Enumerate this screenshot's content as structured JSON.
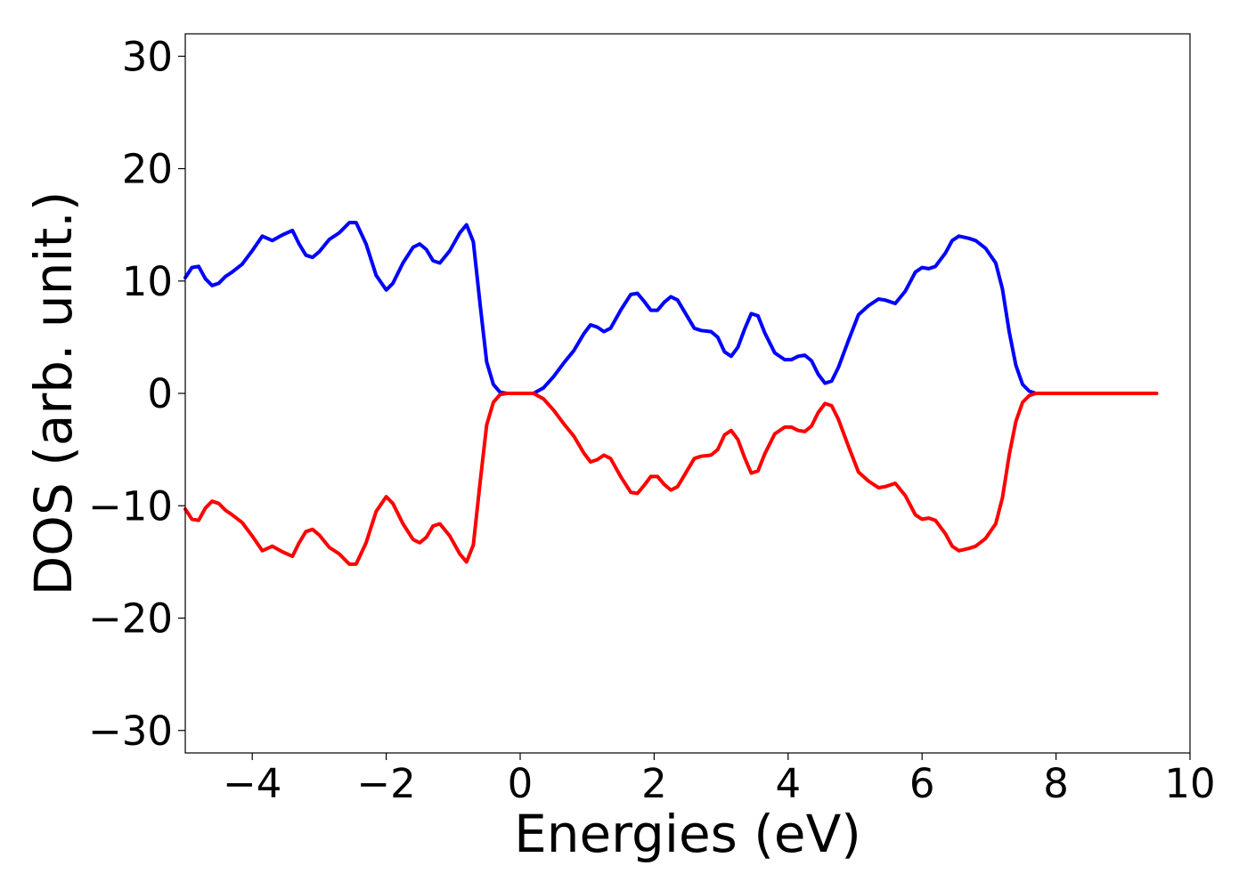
{
  "chart_data": {
    "type": "line",
    "title": "",
    "xlabel": "Energies (eV)",
    "ylabel": "DOS (arb. unit.)",
    "xlim": [
      -5,
      10
    ],
    "ylim": [
      -32,
      32
    ],
    "xticks": [
      -4,
      -2,
      0,
      2,
      4,
      6,
      8,
      10
    ],
    "yticks": [
      -30,
      -20,
      -10,
      0,
      10,
      20,
      30
    ],
    "xtick_labels": [
      "−4",
      "−2",
      "0",
      "2",
      "4",
      "6",
      "8",
      "10"
    ],
    "ytick_labels": [
      "−30",
      "−20",
      "−10",
      "0",
      "10",
      "20",
      "30"
    ],
    "grid": false,
    "series": [
      {
        "color": "#0000ff",
        "points": [
          [
            -5.0,
            10.3
          ],
          [
            -4.9,
            11.2
          ],
          [
            -4.8,
            11.3
          ],
          [
            -4.7,
            10.2
          ],
          [
            -4.6,
            9.6
          ],
          [
            -4.5,
            9.8
          ],
          [
            -4.4,
            10.4
          ],
          [
            -4.3,
            10.8
          ],
          [
            -4.15,
            11.5
          ],
          [
            -4.0,
            12.7
          ],
          [
            -3.85,
            14.0
          ],
          [
            -3.7,
            13.6
          ],
          [
            -3.55,
            14.1
          ],
          [
            -3.4,
            14.5
          ],
          [
            -3.3,
            13.3
          ],
          [
            -3.2,
            12.3
          ],
          [
            -3.1,
            12.1
          ],
          [
            -3.0,
            12.6
          ],
          [
            -2.85,
            13.7
          ],
          [
            -2.7,
            14.3
          ],
          [
            -2.55,
            15.2
          ],
          [
            -2.45,
            15.2
          ],
          [
            -2.3,
            13.3
          ],
          [
            -2.15,
            10.5
          ],
          [
            -2.0,
            9.2
          ],
          [
            -1.9,
            9.8
          ],
          [
            -1.75,
            11.6
          ],
          [
            -1.6,
            13.0
          ],
          [
            -1.5,
            13.3
          ],
          [
            -1.4,
            12.8
          ],
          [
            -1.3,
            11.8
          ],
          [
            -1.2,
            11.6
          ],
          [
            -1.05,
            12.7
          ],
          [
            -0.9,
            14.3
          ],
          [
            -0.8,
            15.0
          ],
          [
            -0.7,
            13.5
          ],
          [
            -0.6,
            8.0
          ],
          [
            -0.5,
            2.8
          ],
          [
            -0.4,
            0.8
          ],
          [
            -0.3,
            0.1
          ],
          [
            -0.2,
            0.0
          ],
          [
            0.0,
            0.0
          ],
          [
            0.2,
            0.0
          ],
          [
            0.35,
            0.5
          ],
          [
            0.5,
            1.5
          ],
          [
            0.65,
            2.7
          ],
          [
            0.8,
            3.8
          ],
          [
            0.95,
            5.3
          ],
          [
            1.05,
            6.1
          ],
          [
            1.15,
            5.9
          ],
          [
            1.25,
            5.5
          ],
          [
            1.35,
            5.8
          ],
          [
            1.5,
            7.4
          ],
          [
            1.65,
            8.8
          ],
          [
            1.75,
            8.9
          ],
          [
            1.85,
            8.2
          ],
          [
            1.95,
            7.4
          ],
          [
            2.05,
            7.4
          ],
          [
            2.15,
            8.1
          ],
          [
            2.25,
            8.6
          ],
          [
            2.35,
            8.3
          ],
          [
            2.45,
            7.3
          ],
          [
            2.6,
            5.8
          ],
          [
            2.7,
            5.6
          ],
          [
            2.85,
            5.5
          ],
          [
            2.95,
            5.0
          ],
          [
            3.05,
            3.7
          ],
          [
            3.15,
            3.3
          ],
          [
            3.25,
            4.1
          ],
          [
            3.35,
            5.7
          ],
          [
            3.45,
            7.1
          ],
          [
            3.55,
            6.9
          ],
          [
            3.65,
            5.4
          ],
          [
            3.8,
            3.6
          ],
          [
            3.95,
            3.0
          ],
          [
            4.05,
            3.0
          ],
          [
            4.15,
            3.3
          ],
          [
            4.25,
            3.4
          ],
          [
            4.35,
            2.9
          ],
          [
            4.45,
            1.7
          ],
          [
            4.55,
            0.9
          ],
          [
            4.65,
            1.1
          ],
          [
            4.75,
            2.3
          ],
          [
            4.9,
            4.7
          ],
          [
            5.05,
            7.0
          ],
          [
            5.2,
            7.8
          ],
          [
            5.35,
            8.4
          ],
          [
            5.45,
            8.3
          ],
          [
            5.6,
            8.0
          ],
          [
            5.75,
            9.1
          ],
          [
            5.9,
            10.8
          ],
          [
            6.0,
            11.2
          ],
          [
            6.1,
            11.1
          ],
          [
            6.2,
            11.3
          ],
          [
            6.35,
            12.5
          ],
          [
            6.45,
            13.6
          ],
          [
            6.55,
            14.0
          ],
          [
            6.7,
            13.8
          ],
          [
            6.8,
            13.6
          ],
          [
            6.95,
            12.9
          ],
          [
            7.1,
            11.6
          ],
          [
            7.2,
            9.3
          ],
          [
            7.3,
            5.5
          ],
          [
            7.4,
            2.5
          ],
          [
            7.5,
            0.8
          ],
          [
            7.6,
            0.2
          ],
          [
            7.7,
            0.0
          ],
          [
            8.0,
            0.0
          ],
          [
            8.5,
            0.0
          ],
          [
            9.0,
            0.0
          ],
          [
            9.5,
            0.0
          ]
        ]
      },
      {
        "color": "#ff0000",
        "points": [
          [
            -5.0,
            -10.3
          ],
          [
            -4.9,
            -11.2
          ],
          [
            -4.8,
            -11.3
          ],
          [
            -4.7,
            -10.2
          ],
          [
            -4.6,
            -9.6
          ],
          [
            -4.5,
            -9.8
          ],
          [
            -4.4,
            -10.4
          ],
          [
            -4.3,
            -10.8
          ],
          [
            -4.15,
            -11.5
          ],
          [
            -4.0,
            -12.7
          ],
          [
            -3.85,
            -14.0
          ],
          [
            -3.7,
            -13.6
          ],
          [
            -3.55,
            -14.1
          ],
          [
            -3.4,
            -14.5
          ],
          [
            -3.3,
            -13.3
          ],
          [
            -3.2,
            -12.3
          ],
          [
            -3.1,
            -12.1
          ],
          [
            -3.0,
            -12.6
          ],
          [
            -2.85,
            -13.7
          ],
          [
            -2.7,
            -14.3
          ],
          [
            -2.55,
            -15.2
          ],
          [
            -2.45,
            -15.2
          ],
          [
            -2.3,
            -13.3
          ],
          [
            -2.15,
            -10.5
          ],
          [
            -2.0,
            -9.2
          ],
          [
            -1.9,
            -9.8
          ],
          [
            -1.75,
            -11.6
          ],
          [
            -1.6,
            -13.0
          ],
          [
            -1.5,
            -13.3
          ],
          [
            -1.4,
            -12.8
          ],
          [
            -1.3,
            -11.8
          ],
          [
            -1.2,
            -11.6
          ],
          [
            -1.05,
            -12.7
          ],
          [
            -0.9,
            -14.3
          ],
          [
            -0.8,
            -15.0
          ],
          [
            -0.7,
            -13.5
          ],
          [
            -0.6,
            -8.0
          ],
          [
            -0.5,
            -2.8
          ],
          [
            -0.4,
            -0.8
          ],
          [
            -0.3,
            -0.1
          ],
          [
            -0.2,
            0.0
          ],
          [
            0.0,
            0.0
          ],
          [
            0.2,
            0.0
          ],
          [
            0.35,
            -0.5
          ],
          [
            0.5,
            -1.5
          ],
          [
            0.65,
            -2.7
          ],
          [
            0.8,
            -3.8
          ],
          [
            0.95,
            -5.3
          ],
          [
            1.05,
            -6.1
          ],
          [
            1.15,
            -5.9
          ],
          [
            1.25,
            -5.5
          ],
          [
            1.35,
            -5.8
          ],
          [
            1.5,
            -7.4
          ],
          [
            1.65,
            -8.8
          ],
          [
            1.75,
            -8.9
          ],
          [
            1.85,
            -8.2
          ],
          [
            1.95,
            -7.4
          ],
          [
            2.05,
            -7.4
          ],
          [
            2.15,
            -8.1
          ],
          [
            2.25,
            -8.6
          ],
          [
            2.35,
            -8.3
          ],
          [
            2.45,
            -7.3
          ],
          [
            2.6,
            -5.8
          ],
          [
            2.7,
            -5.6
          ],
          [
            2.85,
            -5.5
          ],
          [
            2.95,
            -5.0
          ],
          [
            3.05,
            -3.7
          ],
          [
            3.15,
            -3.3
          ],
          [
            3.25,
            -4.1
          ],
          [
            3.35,
            -5.7
          ],
          [
            3.45,
            -7.1
          ],
          [
            3.55,
            -6.9
          ],
          [
            3.65,
            -5.4
          ],
          [
            3.8,
            -3.6
          ],
          [
            3.95,
            -3.0
          ],
          [
            4.05,
            -3.0
          ],
          [
            4.15,
            -3.3
          ],
          [
            4.25,
            -3.4
          ],
          [
            4.35,
            -2.9
          ],
          [
            4.45,
            -1.7
          ],
          [
            4.55,
            -0.9
          ],
          [
            4.65,
            -1.1
          ],
          [
            4.75,
            -2.3
          ],
          [
            4.9,
            -4.7
          ],
          [
            5.05,
            -7.0
          ],
          [
            5.2,
            -7.8
          ],
          [
            5.35,
            -8.4
          ],
          [
            5.45,
            -8.3
          ],
          [
            5.6,
            -8.0
          ],
          [
            5.75,
            -9.1
          ],
          [
            5.9,
            -10.8
          ],
          [
            6.0,
            -11.2
          ],
          [
            6.1,
            -11.1
          ],
          [
            6.2,
            -11.3
          ],
          [
            6.35,
            -12.5
          ],
          [
            6.45,
            -13.6
          ],
          [
            6.55,
            -14.0
          ],
          [
            6.7,
            -13.8
          ],
          [
            6.8,
            -13.6
          ],
          [
            6.95,
            -12.9
          ],
          [
            7.1,
            -11.6
          ],
          [
            7.2,
            -9.3
          ],
          [
            7.3,
            -5.5
          ],
          [
            7.4,
            -2.5
          ],
          [
            7.5,
            -0.8
          ],
          [
            7.6,
            -0.2
          ],
          [
            7.7,
            0.0
          ],
          [
            8.0,
            0.0
          ],
          [
            8.5,
            0.0
          ],
          [
            9.0,
            0.0
          ],
          [
            9.5,
            0.0
          ]
        ]
      }
    ]
  }
}
